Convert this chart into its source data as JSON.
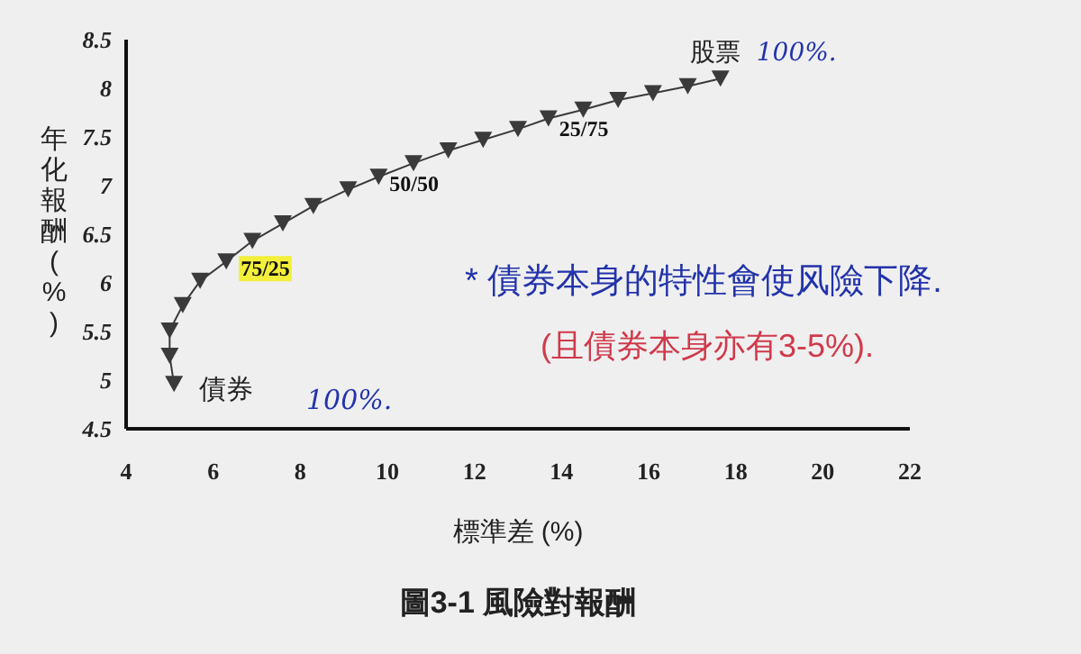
{
  "chart_data": {
    "type": "line",
    "title": "圖3-1  風險對報酬",
    "xlabel": "標準差 (%)",
    "ylabel": "年化報酬 (%)",
    "xlim": [
      4,
      22
    ],
    "xticks": [
      4,
      6,
      8,
      10,
      12,
      14,
      16,
      18,
      20,
      22
    ],
    "ylim": [
      4.5,
      8.5
    ],
    "yticks": [
      4.5,
      5,
      5.5,
      6,
      6.5,
      7,
      7.5,
      8,
      8.5
    ],
    "marker": "triangle",
    "line_style": "solid",
    "grid": false,
    "series": [
      {
        "color": "#3a3a3a",
        "x": [
          5.1,
          5.0,
          5.0,
          5.3,
          5.7,
          6.3,
          6.9,
          7.6,
          8.3,
          9.1,
          9.8,
          10.6,
          11.4,
          12.2,
          13.0,
          13.7,
          14.5,
          15.3,
          16.1,
          16.9,
          17.65
        ],
        "values": [
          4.96,
          5.25,
          5.51,
          5.77,
          6.02,
          6.22,
          6.43,
          6.61,
          6.79,
          6.96,
          7.09,
          7.23,
          7.36,
          7.47,
          7.58,
          7.69,
          7.78,
          7.88,
          7.95,
          8.02,
          8.1
        ]
      }
    ],
    "annotations": [
      {
        "text": "債券",
        "x": 5.1,
        "y": 4.96
      },
      "100%.",
      {
        "text": "75/25",
        "x": 6.3,
        "y": 6.22
      },
      {
        "text": "50/50",
        "x": 9.8,
        "y": 7.09
      },
      {
        "text": "25/75",
        "x": 13.7,
        "y": 7.69
      },
      {
        "text": "股票",
        "x": 17.65,
        "y": 8.1
      },
      {
        "text": "100%.",
        "x": 17.65,
        "y": 8.1
      },
      "* 債券本身的特性會使风險下降.",
      "(且債券本身亦有3-5%)."
    ]
  }
}
